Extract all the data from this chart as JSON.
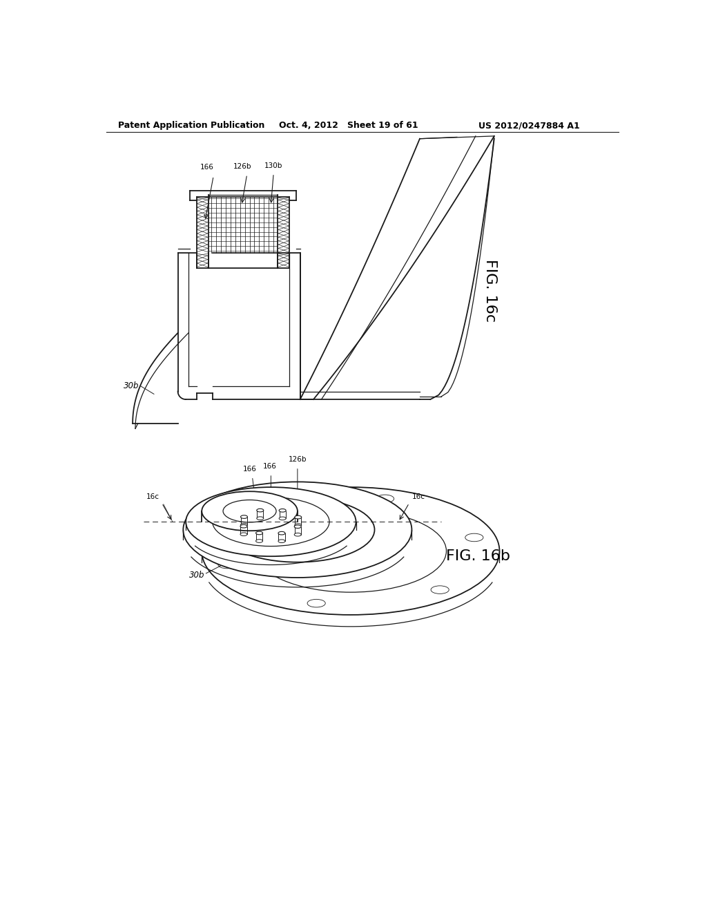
{
  "header_left": "Patent Application Publication",
  "header_mid": "Oct. 4, 2012   Sheet 19 of 61",
  "header_right": "US 2012/0247884 A1",
  "fig_top_label": "FIG. 16c",
  "fig_bot_label": "FIG. 16b",
  "background_color": "#ffffff",
  "line_color": "#1a1a1a",
  "fs_header": 9,
  "fs_label": 7.5,
  "fs_fig": 16
}
